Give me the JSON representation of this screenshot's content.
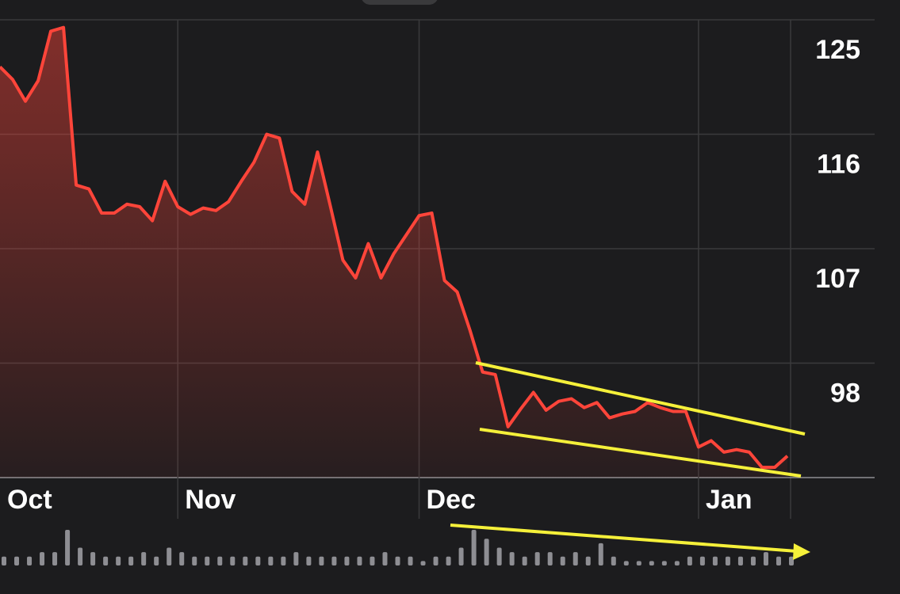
{
  "chart_data": {
    "type": "line",
    "categories": [
      "Oct",
      null,
      null,
      null,
      null,
      null,
      null,
      null,
      null,
      null,
      null,
      null,
      null,
      null,
      "Nov",
      null,
      null,
      null,
      null,
      null,
      null,
      null,
      null,
      null,
      null,
      null,
      null,
      null,
      null,
      null,
      null,
      null,
      null,
      "Dec",
      null,
      null,
      null,
      null,
      null,
      null,
      null,
      null,
      null,
      null,
      null,
      null,
      null,
      null,
      null,
      null,
      null,
      null,
      null,
      null,
      null,
      "Jan",
      null,
      null,
      null,
      null,
      null,
      null,
      null
    ],
    "series": [
      {
        "color": "#ff453a",
        "values": [
          121.3,
          120.3,
          118.6,
          120.2,
          124.1,
          124.4,
          112.0,
          111.7,
          109.8,
          109.8,
          110.5,
          110.3,
          109.2,
          112.3,
          110.3,
          109.7,
          110.2,
          110.0,
          110.7,
          112.3,
          113.8,
          116.0,
          115.7,
          111.5,
          110.5,
          114.6,
          110.4,
          106.1,
          104.7,
          107.4,
          104.7,
          106.6,
          108.1,
          109.6,
          109.8,
          104.5,
          103.6,
          100.6,
          97.3,
          97.1,
          93.0,
          94.4,
          95.7,
          94.3,
          95.0,
          95.2,
          94.5,
          94.9,
          93.7,
          94.0,
          94.2,
          94.9,
          94.5,
          94.2,
          94.2,
          91.4,
          91.9,
          91.0,
          91.2,
          91.0,
          89.8,
          89.8,
          90.7
        ]
      }
    ],
    "volume": {
      "color": "#8e8e93",
      "values": [
        2,
        2,
        2,
        3,
        3,
        8,
        4,
        3,
        2,
        2,
        2,
        3,
        2,
        4,
        3,
        2,
        2,
        2,
        2,
        2,
        2,
        2,
        2,
        3,
        2,
        2,
        2,
        2,
        2,
        2,
        3,
        2,
        2,
        1,
        2,
        2,
        4,
        8,
        6,
        4,
        3,
        2,
        3,
        3,
        2,
        3,
        2,
        5,
        2,
        1,
        1,
        1,
        1,
        1,
        2,
        2,
        2,
        2,
        2,
        2,
        3,
        2,
        2
      ]
    },
    "ylim": [
      89,
      125
    ],
    "yticks": [
      98,
      107,
      116,
      125
    ],
    "grid": true
  }
}
